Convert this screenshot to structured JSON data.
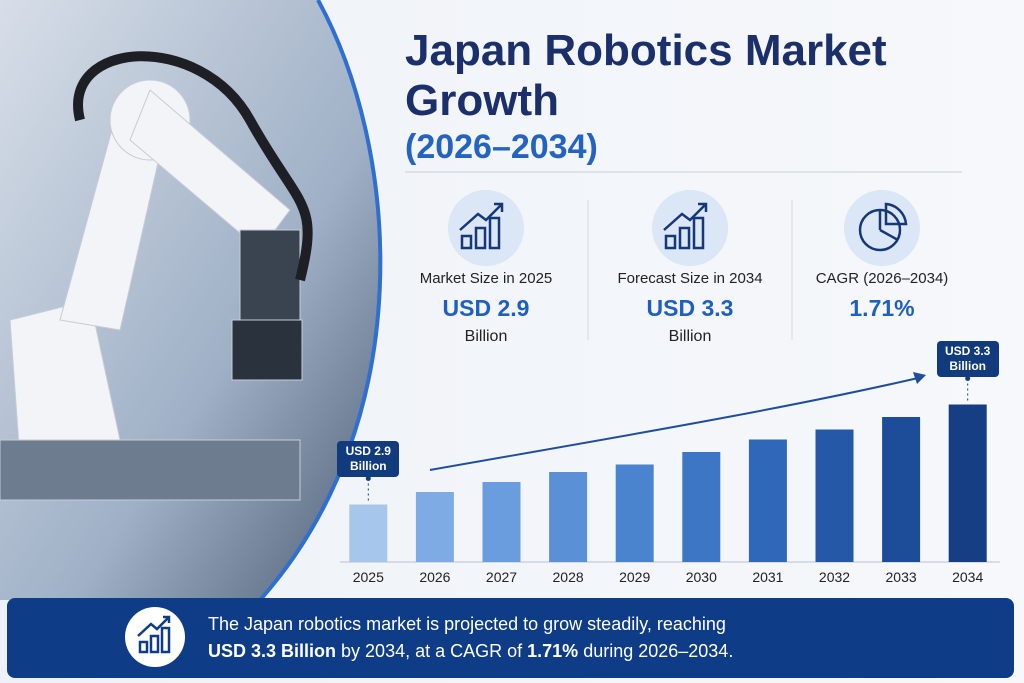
{
  "header": {
    "title": "Japan Robotics Market Growth",
    "subtitle": "(2026–2034)"
  },
  "stats": [
    {
      "label": "Market Size in 2025",
      "value": "USD 2.9",
      "unit": "Billion"
    },
    {
      "label": "Forecast Size in 2034",
      "value": "USD 3.3",
      "unit": "Billion"
    },
    {
      "label": "CAGR (2026–2034)",
      "value": "1.71%"
    }
  ],
  "chart_data": {
    "type": "bar",
    "categories": [
      "2025",
      "2026",
      "2027",
      "2028",
      "2029",
      "2030",
      "2031",
      "2032",
      "2033",
      "2034"
    ],
    "values": [
      2.9,
      2.95,
      2.99,
      3.03,
      3.06,
      3.11,
      3.16,
      3.2,
      3.25,
      3.3
    ],
    "value_labels": [
      "USD 2.9 Billion",
      null,
      null,
      null,
      null,
      null,
      null,
      null,
      null,
      "USD 3.3 Billion"
    ],
    "colors": [
      "#a6c6ec",
      "#7eabe3",
      "#6a9ddd",
      "#5a91d6",
      "#4a84cf",
      "#3c76c5",
      "#2f68b8",
      "#2559a8",
      "#1d4c98",
      "#163e85"
    ],
    "ylim": [
      2.67,
      3.35
    ]
  },
  "footer": {
    "parts": [
      "The Japan robotics market is projected to grow steadily, reaching",
      "USD 3.3 Billion",
      " by 2034, at a CAGR of ",
      "1.71%",
      " during 2026–2034."
    ]
  }
}
